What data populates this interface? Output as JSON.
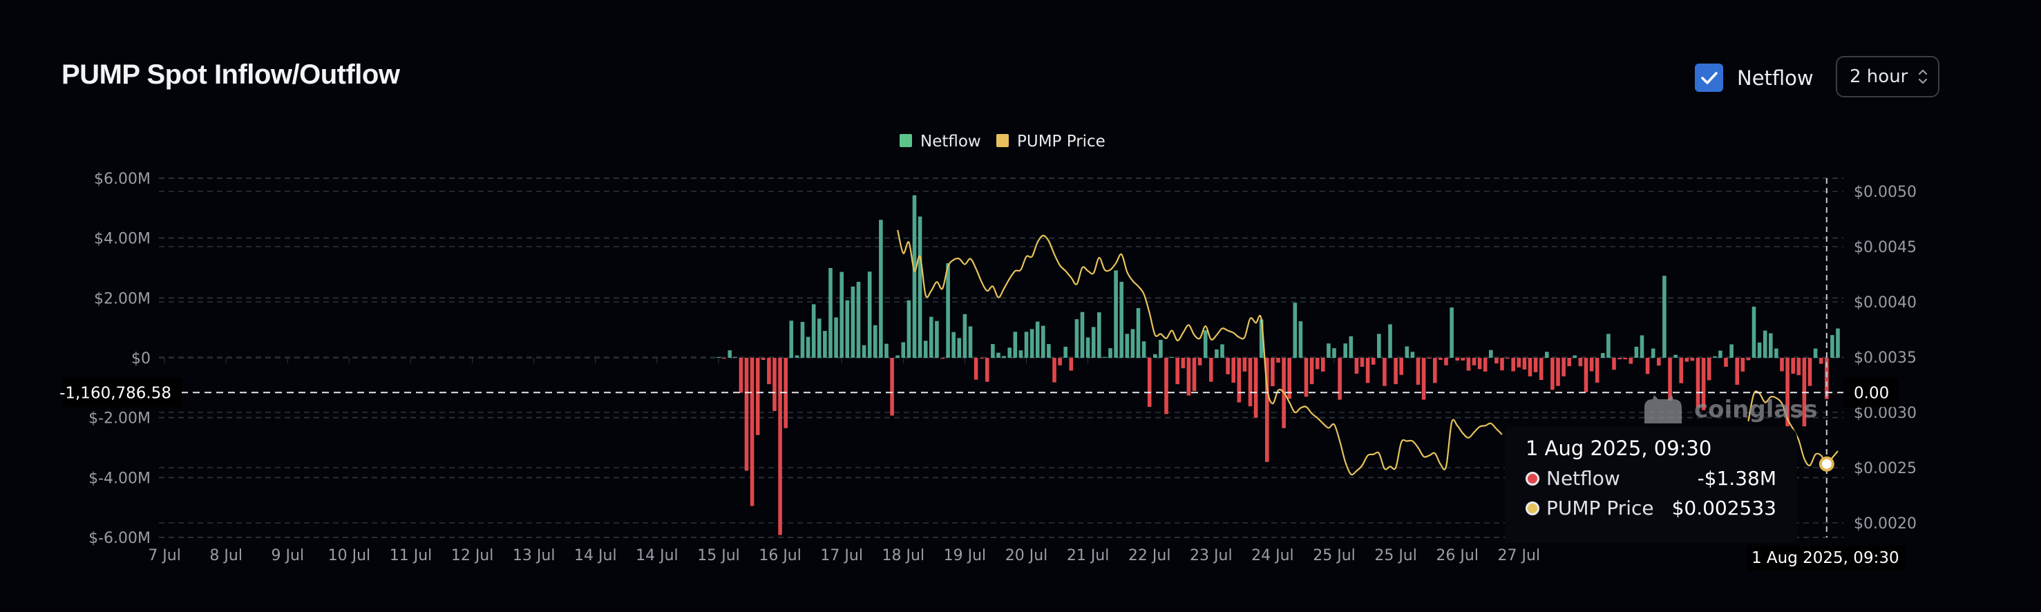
{
  "header": {
    "title": "PUMP Spot Inflow/Outflow",
    "netflow_toggle": {
      "label": "Netflow",
      "checked": true,
      "color": "#3370d4"
    },
    "interval": {
      "value": "2 hour"
    }
  },
  "legend": [
    {
      "label": "Netflow",
      "color": "#5ec48b"
    },
    {
      "label": "PUMP Price",
      "color": "#e8bf5e"
    }
  ],
  "chart_data": {
    "type": "bar+line",
    "grid": true,
    "legend_position": "top-center",
    "x_tick_labels": [
      "7 Jul",
      "8 Jul",
      "9 Jul",
      "10 Jul",
      "11 Jul",
      "12 Jul",
      "13 Jul",
      "14 Jul",
      "14 Jul",
      "15 Jul",
      "16 Jul",
      "17 Jul",
      "18 Jul",
      "19 Jul",
      "20 Jul",
      "21 Jul",
      "22 Jul",
      "23 Jul",
      "24 Jul",
      "25 Jul",
      "25 Jul",
      "26 Jul",
      "27 Jul"
    ],
    "left_axis": {
      "unit": "USD millions",
      "range": [
        -6,
        6
      ],
      "tick_values": [
        6,
        4,
        2,
        0,
        -2,
        -4,
        -6
      ],
      "tick_labels": [
        "$6.00M",
        "$4.00M",
        "$2.00M",
        "$0",
        "$-2.00M",
        "$-4.00M",
        "$-6.00M"
      ]
    },
    "right_axis": {
      "range": [
        0.002,
        0.005
      ],
      "tick_values": [
        0.005,
        0.0045,
        0.004,
        0.0035,
        0.003,
        0.0025,
        0.002
      ],
      "tick_labels": [
        "$0.0050",
        "$0.0045",
        "$0.0040",
        "$0.0035",
        "$0.0030",
        "$0.0025",
        "$0.0020"
      ]
    },
    "series": [
      {
        "name": "Netflow",
        "axis": "left",
        "color_positive": "#4fa68e",
        "color_negative": "#e0474c",
        "values": [
          0,
          -0.03,
          0.25,
          0,
          -1.17,
          -3.77,
          -4.95,
          -2.58,
          -0.07,
          -0.88,
          -1.78,
          -5.92,
          -2.35,
          1.24,
          0.08,
          1.2,
          0.7,
          1.79,
          1.31,
          0.9,
          3.0,
          1.35,
          2.87,
          1.92,
          2.38,
          2.54,
          0.42,
          2.88,
          1.09,
          4.61,
          0.47,
          -1.93,
          0.08,
          0.52,
          1.92,
          5.43,
          4.72,
          0.57,
          1.37,
          1.23,
          -0.03,
          3.16,
          0.86,
          0.66,
          1.46,
          1.05,
          -0.73,
          -0.03,
          -0.8,
          0.46,
          0.17,
          0.06,
          0.34,
          0.87,
          0.25,
          0.87,
          0.96,
          1.21,
          1.07,
          0.46,
          -0.82,
          -0.25,
          0.37,
          -0.43,
          1.29,
          1.53,
          0.68,
          1.03,
          1.52,
          0.03,
          0.32,
          2.92,
          2.54,
          0.8,
          0.96,
          1.66,
          0.55,
          -1.64,
          0.12,
          0.6,
          -1.88,
          0.03,
          -0.88,
          -0.35,
          -1.26,
          -1.11,
          -0.25,
          0.92,
          -0.8,
          0.28,
          0.45,
          -0.55,
          -0.83,
          -1.49,
          -0.46,
          -1.62,
          -2.0,
          1.28,
          -3.48,
          -0.95,
          -0.16,
          -2.35,
          -1.37,
          1.84,
          1.22,
          -1.3,
          -0.88,
          -0.38,
          -0.46,
          0.48,
          0.32,
          -1.4,
          0.48,
          0.72,
          -0.53,
          -0.3,
          -0.84,
          -0.23,
          0.8,
          -0.94,
          1.12,
          -0.88,
          -0.57,
          0.38,
          0.2,
          -0.9,
          -1.4,
          -0.02,
          -0.84,
          -0.07,
          -0.25,
          1.68,
          -0.09,
          -0.09,
          -0.43,
          -0.25,
          -0.38,
          -0.46,
          0.26,
          -0.19,
          -0.42,
          -0.02,
          -0.45,
          -0.32,
          -0.39,
          -0.62,
          -0.48,
          -0.74,
          0.2,
          -1.07,
          -0.94,
          -0.62,
          -0.28,
          0.08,
          -0.28,
          -1.15,
          -0.45,
          -0.83,
          0.16,
          0.8,
          -0.4,
          -0.05,
          -0.05,
          -0.2,
          0.37,
          0.75,
          -0.54,
          0.31,
          -0.26,
          2.74,
          -1.43,
          0.1,
          -0.85,
          -0.13,
          -0.1,
          -1.66,
          -1.75,
          -0.75,
          0.05,
          0.24,
          -0.3,
          0.45,
          -0.9,
          -0.46,
          -0.08,
          1.71,
          0.51,
          0.91,
          0.82,
          0.31,
          -0.45,
          -2.29,
          -0.53,
          -0.58,
          -2.29,
          -0.94,
          0.31,
          -0.2,
          -1.38,
          0.76,
          0.98
        ]
      },
      {
        "name": "PUMP Price",
        "axis": "right",
        "color": "#e8c35c",
        "values": [
          null,
          null,
          null,
          null,
          null,
          null,
          null,
          null,
          null,
          null,
          null,
          null,
          null,
          null,
          null,
          null,
          null,
          null,
          null,
          null,
          null,
          null,
          null,
          null,
          null,
          null,
          null,
          null,
          null,
          null,
          null,
          null,
          0.00465,
          0.00444,
          0.00454,
          0.00428,
          0.00441,
          0.00406,
          0.0041,
          0.00418,
          0.00412,
          0.00432,
          0.00438,
          0.00439,
          0.00434,
          0.00439,
          0.0043,
          0.00418,
          0.0041,
          0.00414,
          0.00404,
          0.00412,
          0.00421,
          0.00428,
          0.00429,
          0.00441,
          0.00441,
          0.00454,
          0.0046,
          0.00455,
          0.00443,
          0.00433,
          0.00428,
          0.00422,
          0.00416,
          0.00431,
          0.00428,
          0.00426,
          0.0044,
          0.00429,
          0.00429,
          0.00435,
          0.00443,
          0.00427,
          0.00419,
          0.00414,
          0.00407,
          0.0039,
          0.0037,
          0.00371,
          0.00367,
          0.00374,
          0.00365,
          0.00372,
          0.00379,
          0.0037,
          0.00367,
          0.00378,
          0.00366,
          0.0037,
          0.00376,
          0.00374,
          0.00372,
          0.00368,
          0.00368,
          0.00385,
          0.00381,
          0.00384,
          0.00323,
          0.00308,
          0.0032,
          0.00318,
          0.00309,
          0.003,
          0.00304,
          0.00305,
          0.00299,
          0.00295,
          0.0029,
          0.00286,
          0.00289,
          0.00274,
          0.00255,
          0.00244,
          0.00247,
          0.00252,
          0.00261,
          0.00262,
          0.00263,
          0.00249,
          0.00251,
          0.0025,
          0.00273,
          0.00274,
          0.00274,
          0.00268,
          0.0026,
          0.00261,
          0.00263,
          0.00253,
          0.00251,
          0.00291,
          0.00288,
          0.00281,
          0.00277,
          0.00282,
          0.00287,
          0.00288,
          0.0029,
          0.00285,
          0.0028,
          null,
          null,
          null,
          null,
          null,
          null,
          null,
          null,
          null,
          null,
          null,
          null,
          null,
          null,
          null,
          null,
          null,
          null,
          null,
          null,
          null,
          null,
          null,
          null,
          null,
          null,
          null,
          null,
          null,
          null,
          null,
          null,
          null,
          null,
          null,
          null,
          null,
          null,
          null,
          null,
          null,
          null,
          null,
          0.00292,
          0.00317,
          0.00317,
          0.00309,
          0.00314,
          0.00313,
          0.00308,
          0.00294,
          0.00285,
          0.00275,
          0.00258,
          0.00252,
          0.00262,
          0.00261,
          0.002533,
          0.00259,
          0.00265
        ]
      }
    ]
  },
  "crosshair": {
    "index": 198,
    "left_label": "-1,160,786.58",
    "right_label": "0.00",
    "x_label": "1 Aug 2025, 09:30"
  },
  "tooltip": {
    "title": "1 Aug 2025, 09:30",
    "rows": [
      {
        "label": "Netflow",
        "value": "-$1.38M",
        "dot_color": "#e0474c"
      },
      {
        "label": "PUMP Price",
        "value": "$0.002533",
        "dot_color": "#e6c45e"
      }
    ]
  },
  "watermark": "coinglass"
}
